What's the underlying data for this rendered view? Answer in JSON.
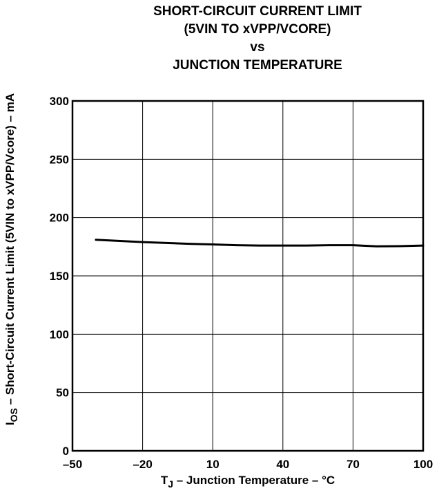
{
  "chart_data": {
    "type": "line",
    "title_lines": [
      "SHORT-CIRCUIT CURRENT LIMIT",
      "(5VIN TO xVPP/VCORE)",
      "vs",
      "JUNCTION TEMPERATURE"
    ],
    "xlabel": {
      "symbol": "T",
      "subscript": "J",
      "text": " – Junction Temperature – °C"
    },
    "ylabel": {
      "symbol": "I",
      "subscript": "OS",
      "text": " – Short-Circuit Current Limit (5VIN to xVPP/Vcore) – mA"
    },
    "xlim": [
      -50,
      100
    ],
    "ylim": [
      0,
      300
    ],
    "xticks": [
      -50,
      -20,
      10,
      40,
      70,
      100
    ],
    "yticks": [
      0,
      50,
      100,
      150,
      200,
      250,
      300
    ],
    "xtick_labels": [
      "–50",
      "–20",
      "10",
      "40",
      "70",
      "100"
    ],
    "ytick_labels": [
      "0",
      "50",
      "100",
      "150",
      "200",
      "250",
      "300"
    ],
    "grid": true,
    "series": [
      {
        "x": [
          -40,
          -20,
          0,
          10,
          20,
          30,
          40,
          50,
          60,
          70,
          80,
          90,
          100
        ],
        "y": [
          181,
          179,
          177.5,
          177,
          176.3,
          176,
          176,
          176,
          176.3,
          176.3,
          175.3,
          175.5,
          176
        ]
      }
    ],
    "colors": {
      "line": "#000000",
      "grid": "#000000",
      "frame": "#000000"
    }
  }
}
